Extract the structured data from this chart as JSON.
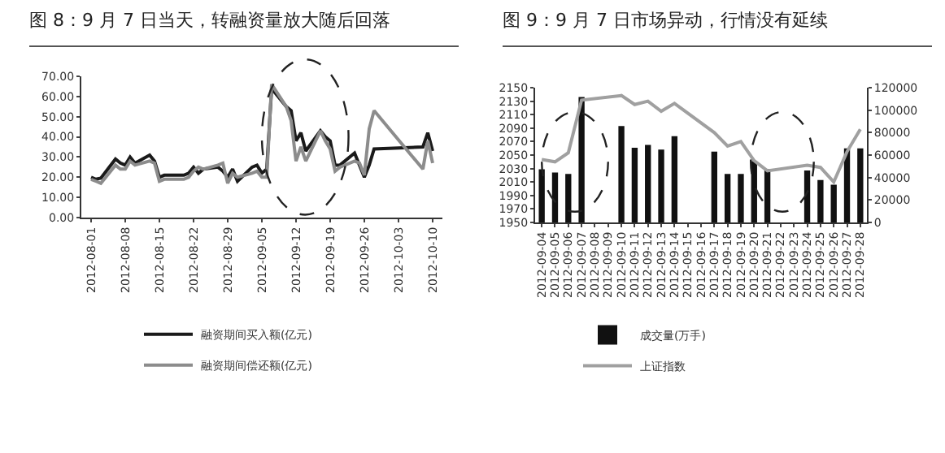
{
  "chart_data": [
    {
      "type": "line",
      "title": "图 8：9 月 7 日当天，转融资量放大随后回落",
      "x": [
        "2012-08-01",
        "2012-08-02",
        "2012-08-03",
        "2012-08-06",
        "2012-08-07",
        "2012-08-08",
        "2012-08-09",
        "2012-08-10",
        "2012-08-13",
        "2012-08-14",
        "2012-08-15",
        "2012-08-16",
        "2012-08-17",
        "2012-08-20",
        "2012-08-21",
        "2012-08-22",
        "2012-08-23",
        "2012-08-24",
        "2012-08-27",
        "2012-08-28",
        "2012-08-29",
        "2012-08-30",
        "2012-08-31",
        "2012-09-03",
        "2012-09-04",
        "2012-09-05",
        "2012-09-06",
        "2012-09-07",
        "2012-09-10",
        "2012-09-11",
        "2012-09-12",
        "2012-09-13",
        "2012-09-14",
        "2012-09-17",
        "2012-09-18",
        "2012-09-19",
        "2012-09-20",
        "2012-09-21",
        "2012-09-24",
        "2012-09-25",
        "2012-09-26",
        "2012-09-27",
        "2012-09-28",
        "2012-10-08",
        "2012-10-09",
        "2012-10-10"
      ],
      "series": [
        {
          "name": "融资期间买入额(亿元)",
          "color": "#1a1a1a",
          "values": [
            20,
            19,
            19.5,
            29,
            27,
            26,
            30,
            27,
            31,
            28,
            20,
            21,
            21,
            21,
            22,
            25,
            22,
            24,
            25,
            23,
            20,
            24,
            18,
            25,
            26,
            22,
            24,
            64,
            55,
            53,
            38,
            42,
            33,
            43,
            40,
            38,
            26,
            26,
            32,
            26,
            20,
            26,
            34,
            35,
            42,
            33
          ]
        },
        {
          "name": "融资期间偿还额(亿元)",
          "color": "#8c8c8c",
          "values": [
            19,
            18,
            17,
            26,
            24,
            24,
            28,
            26,
            28,
            27,
            18,
            19,
            19,
            19,
            20,
            23,
            25,
            24,
            26,
            27,
            17,
            22,
            20,
            22,
            23,
            20,
            20,
            66,
            55,
            48,
            28,
            35,
            28,
            43,
            38,
            34,
            23,
            25,
            28,
            27,
            21,
            44,
            53,
            24,
            38,
            27
          ]
        }
      ],
      "xlim": [
        "2012-07-30",
        "2012-10-12"
      ],
      "xticks": [
        "2012-08-01",
        "2012-08-08",
        "2012-08-15",
        "2012-08-22",
        "2012-08-29",
        "2012-09-05",
        "2012-09-12",
        "2012-09-19",
        "2012-09-26",
        "2012-10-03",
        "2012-10-10"
      ],
      "ylim": [
        0,
        70
      ],
      "yticks": [
        {
          "value": 0,
          "label": "0.00"
        },
        {
          "value": 10,
          "label": "10.00"
        },
        {
          "value": 20,
          "label": "20.00"
        },
        {
          "value": 30,
          "label": "30.00"
        },
        {
          "value": 40,
          "label": "40.00"
        },
        {
          "value": 50,
          "label": "50.00"
        },
        {
          "value": 60,
          "label": "60.00"
        },
        {
          "value": 70,
          "label": "70.00"
        }
      ],
      "grid": false,
      "legend": "bottom"
    },
    {
      "type": "bar",
      "title": "图 9：9 月 7 日市场异动，行情没有延续",
      "categories": [
        "2012-09-04",
        "2012-09-05",
        "2012-09-06",
        "2012-09-07",
        "2012-09-08",
        "2012-09-09",
        "2012-09-10",
        "2012-09-11",
        "2012-09-12",
        "2012-09-13",
        "2012-09-14",
        "2012-09-15",
        "2012-09-16",
        "2012-09-17",
        "2012-09-18",
        "2012-09-19",
        "2012-09-20",
        "2012-09-21",
        "2012-09-22",
        "2012-09-23",
        "2012-09-24",
        "2012-09-25",
        "2012-09-26",
        "2012-09-27",
        "2012-09-28"
      ],
      "series": [
        {
          "name": "成交量(万手)",
          "color": "#111111",
          "values": [
            2029,
            2024,
            2022,
            2136,
            null,
            null,
            2093,
            2061,
            2065,
            2058,
            2078,
            null,
            null,
            2055,
            2022,
            2022,
            2041,
            2029,
            null,
            null,
            2027,
            2013,
            2006,
            2060,
            2060
          ]
        },
        {
          "name": "上证指数",
          "type": "line",
          "axis": "y2",
          "color": "#a0a0a0",
          "values": [
            56000,
            54000,
            62000,
            109000,
            null,
            null,
            113000,
            105000,
            108000,
            99000,
            106000,
            null,
            null,
            80000,
            68000,
            72000,
            55000,
            46000,
            null,
            null,
            51000,
            49000,
            36000,
            63000,
            83000
          ]
        }
      ],
      "ylim": [
        1950,
        2150
      ],
      "yticks": [
        1950,
        1970,
        1990,
        2010,
        2030,
        2050,
        2070,
        2090,
        2110,
        2130,
        2150
      ],
      "y2lim": [
        0,
        120000
      ],
      "y2ticks": [
        0,
        20000,
        40000,
        60000,
        80000,
        100000,
        120000
      ],
      "grid": false,
      "legend": "bottom"
    }
  ]
}
